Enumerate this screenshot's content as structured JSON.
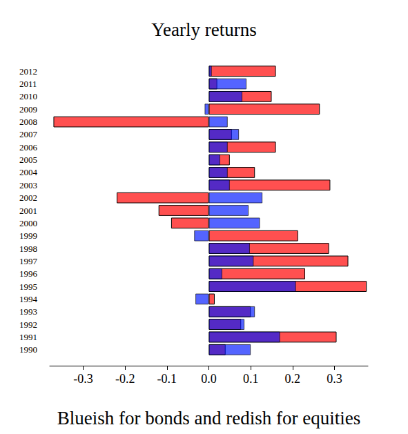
{
  "chart_data": {
    "type": "bar",
    "orientation": "horizontal",
    "title": "Yearly returns",
    "x_label": "Blueish for bonds and redish for equities",
    "categories": [
      "1990",
      "1991",
      "1992",
      "1993",
      "1994",
      "1995",
      "1996",
      "1997",
      "1998",
      "1999",
      "2000",
      "2001",
      "2002",
      "2003",
      "2004",
      "2005",
      "2006",
      "2007",
      "2008",
      "2009",
      "2010",
      "2011",
      "2012"
    ],
    "series": [
      {
        "name": "equities",
        "color": "#ff5050",
        "values": [
          0.04,
          0.305,
          0.077,
          0.1,
          0.014,
          0.377,
          0.23,
          0.333,
          0.287,
          0.213,
          -0.09,
          -0.12,
          -0.22,
          0.29,
          0.11,
          0.05,
          0.16,
          0.055,
          -0.371,
          0.265,
          0.15,
          0.02,
          0.16
        ]
      },
      {
        "name": "bonds",
        "color": "#0018ff",
        "values": [
          0.1,
          0.17,
          0.085,
          0.11,
          -0.032,
          0.208,
          0.032,
          0.107,
          0.098,
          -0.035,
          0.122,
          0.095,
          0.128,
          0.05,
          0.045,
          0.027,
          0.045,
          0.072,
          0.045,
          -0.01,
          0.08,
          0.09,
          0.007
        ]
      }
    ],
    "xlim": [
      -0.38,
      0.38
    ],
    "xticks": [
      -0.3,
      -0.2,
      -0.1,
      {
        "value": 0,
        "label": "0.0"
      },
      0.1,
      0.2,
      0.3
    ],
    "grid": false
  }
}
